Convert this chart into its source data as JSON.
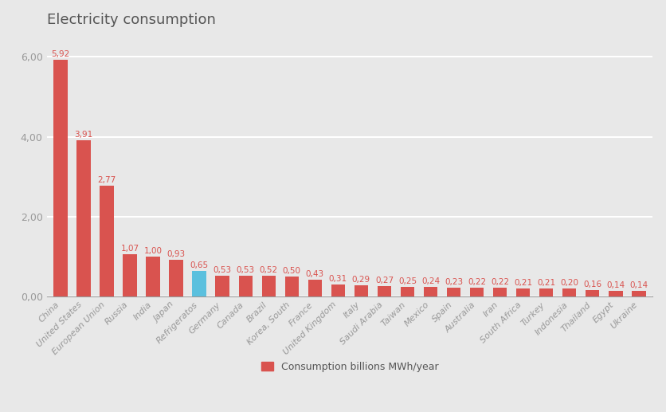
{
  "title": "Electricity consumption",
  "categories": [
    "China",
    "United States",
    "European Union",
    "Russia",
    "India",
    "Japan",
    "Refrigeratos",
    "Germany",
    "Canada",
    "Brazil",
    "Korea, South",
    "France",
    "United Kingdom",
    "Italy",
    "Saudi Arabia",
    "Taiwan",
    "Mexico",
    "Spain",
    "Australia",
    "Iran",
    "South Africa",
    "Turkey",
    "Indonesia",
    "Thailand",
    "Egypt",
    "Ukraine"
  ],
  "values": [
    5.92,
    3.91,
    2.77,
    1.07,
    1.0,
    0.93,
    0.65,
    0.53,
    0.53,
    0.52,
    0.5,
    0.43,
    0.31,
    0.29,
    0.27,
    0.25,
    0.24,
    0.23,
    0.22,
    0.22,
    0.21,
    0.21,
    0.2,
    0.16,
    0.14,
    0.14
  ],
  "bar_color_default": "#d9534f",
  "bar_color_special": "#5bc0de",
  "special_index": 6,
  "label_color": "#d9534f",
  "legend_label": "Consumption billions MWh/year",
  "background_color": "#e8e8e8",
  "plot_bg_color": "#e8e8e8",
  "grid_color": "#ffffff",
  "title_fontsize": 13,
  "ylim": [
    0,
    6.6
  ],
  "yticks": [
    0.0,
    2.0,
    4.0,
    6.0
  ],
  "ytick_labels": [
    "0,00",
    "2,00",
    "4,00",
    "6,00"
  ],
  "tick_color": "#999999",
  "label_fontsize": 7.5
}
